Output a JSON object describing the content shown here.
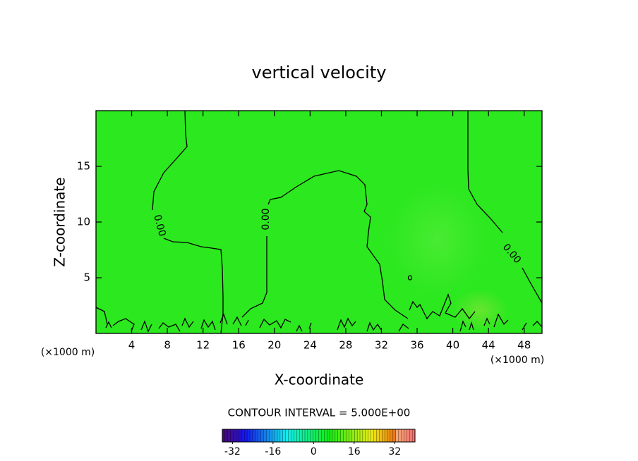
{
  "chart_data": {
    "type": "contour",
    "title": "vertical velocity",
    "x_label": "X-coordinate",
    "y_label": "Z-coordinate",
    "x_unit": "(×1000 m)",
    "y_unit": "(×1000 m)",
    "xlim": [
      0,
      50
    ],
    "ylim": [
      0,
      20
    ],
    "xticks": [
      4,
      8,
      12,
      16,
      20,
      24,
      28,
      32,
      36,
      40,
      44,
      48
    ],
    "yticks": [
      5,
      10,
      15
    ],
    "field_color": "#2ce81f",
    "contour_level": 0,
    "contour_labels": [
      "0.00",
      "0.00",
      "0.00"
    ],
    "contour_interval_label": "CONTOUR INTERVAL = 5.000E+00",
    "colorbar": {
      "lim": [
        -36,
        40
      ],
      "ticks": [
        -32,
        -16,
        0,
        16,
        32
      ]
    }
  }
}
